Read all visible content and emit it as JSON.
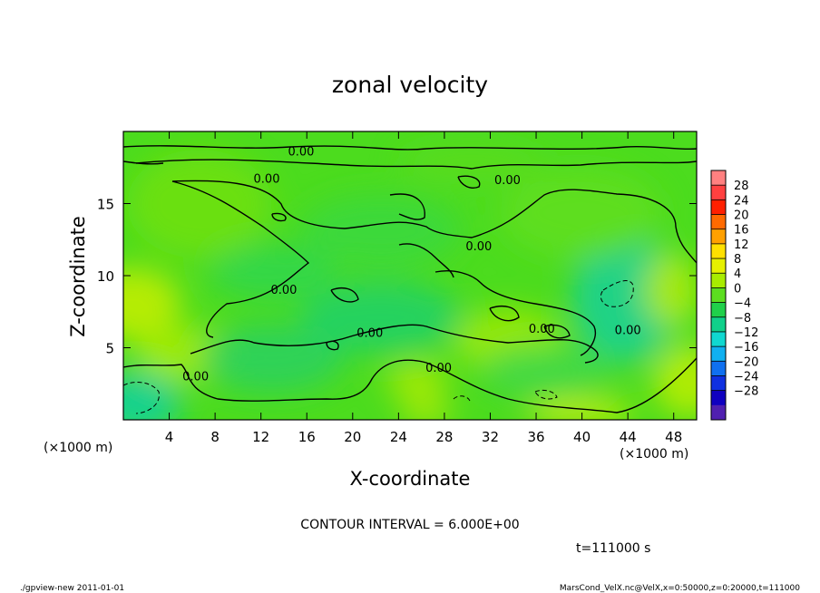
{
  "chart_data": {
    "type": "heatmap",
    "title": "zonal velocity",
    "xlabel": "X-coordinate",
    "ylabel": "Z-coordinate",
    "x_unit": "(×1000 m)",
    "y_unit": "(×1000 m)",
    "x_ticks": [
      4,
      8,
      12,
      16,
      20,
      24,
      28,
      32,
      36,
      40,
      44,
      48
    ],
    "y_ticks": [
      5,
      10,
      15
    ],
    "xlim": [
      0,
      50
    ],
    "ylim": [
      0,
      20
    ],
    "contour_interval_text": "CONTOUR INTERVAL = 6.000E+00",
    "time_text": "t=111000 s",
    "contour_labels": [
      {
        "text": "0.00",
        "x": 15.5,
        "z": 18.6
      },
      {
        "text": "0.00",
        "x": 12.5,
        "z": 16.7
      },
      {
        "text": "0.00",
        "x": 33.5,
        "z": 16.6
      },
      {
        "text": "0.00",
        "x": 31.0,
        "z": 12.0
      },
      {
        "text": "0.00",
        "x": 14.0,
        "z": 9.0
      },
      {
        "text": "0.00",
        "x": 21.5,
        "z": 6.0
      },
      {
        "text": "0.00",
        "x": 36.5,
        "z": 6.3
      },
      {
        "text": "0.00",
        "x": 44.0,
        "z": 6.2
      },
      {
        "text": "0.00",
        "x": 6.3,
        "z": 3.0
      },
      {
        "text": "0.00",
        "x": 27.5,
        "z": 3.6
      }
    ],
    "colorbar": {
      "ticks": [
        "28",
        "24",
        "20",
        "16",
        "12",
        "8",
        "4",
        "0",
        "−4",
        "−8",
        "−12",
        "−16",
        "−20",
        "−24",
        "−28"
      ],
      "colors": [
        "#ff8080",
        "#ff4040",
        "#ff2000",
        "#ff6a00",
        "#ffa000",
        "#ffe000",
        "#e6f000",
        "#a8ec00",
        "#5cde20",
        "#20d04a",
        "#10d08a",
        "#10d8d0",
        "#10b0f0",
        "#1070f0",
        "#1030e0",
        "#1000c0",
        "#5020b0"
      ]
    }
  },
  "footer": {
    "left": "./gpview-new   2011-01-01",
    "right": "MarsCond_VelX.nc@VelX,x=0:50000,z=0:20000,t=111000"
  }
}
